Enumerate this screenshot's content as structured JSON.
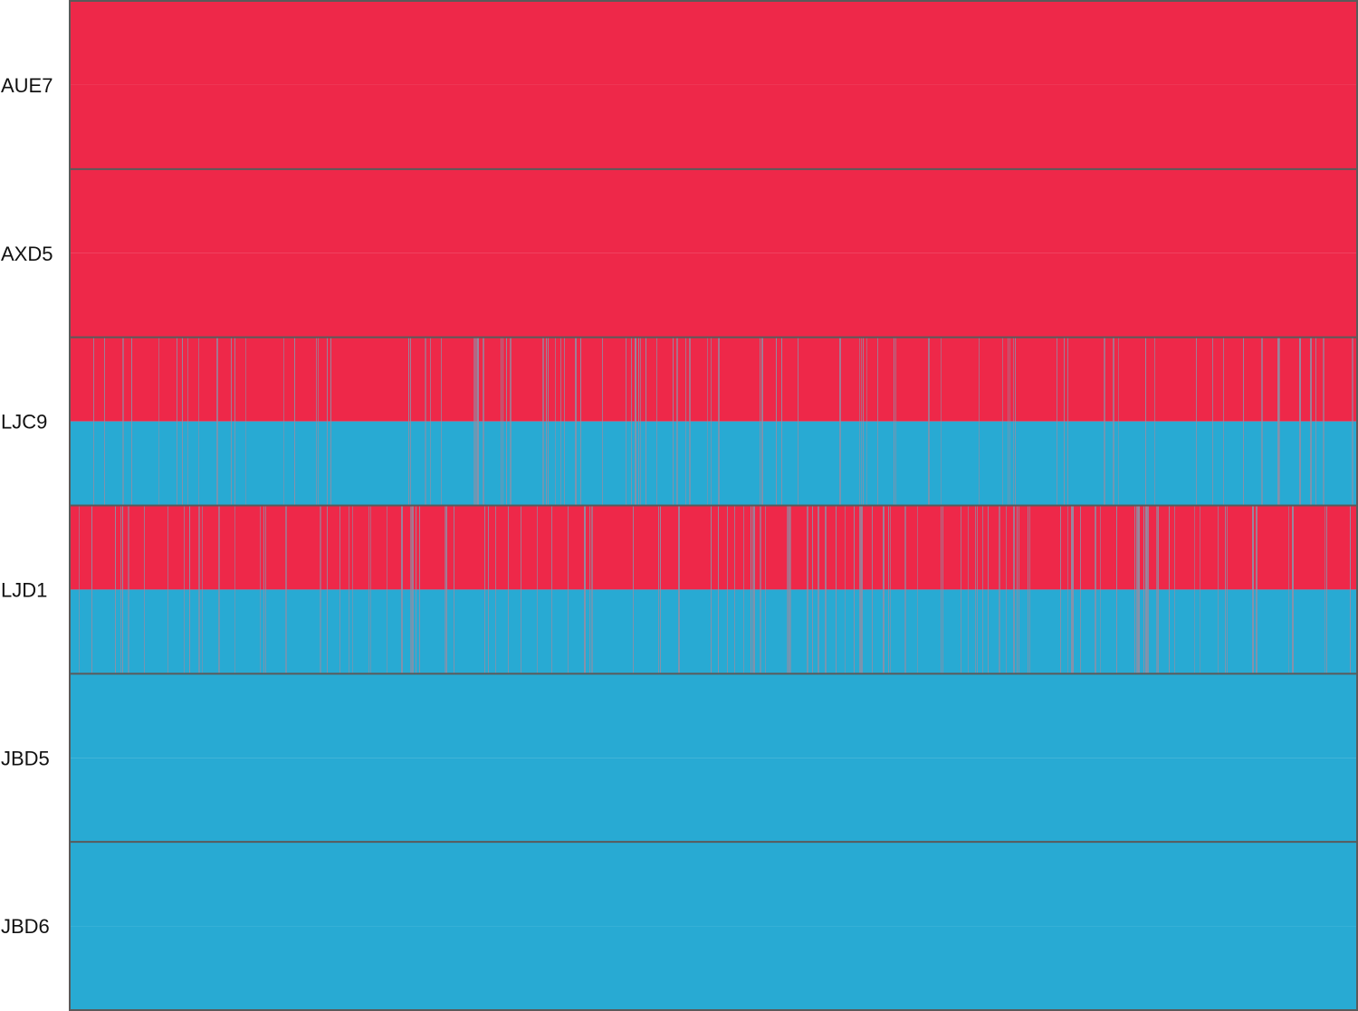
{
  "chart_data": {
    "type": "heatmap",
    "rows": [
      "AUE7",
      "AXD5",
      "LJC9",
      "LJD1",
      "JBD5",
      "JBD6"
    ],
    "sub_rows_per_row": 2,
    "colors": {
      "red": "#EE2849",
      "blue": "#28AAD3",
      "mixed": "#8F8FA6",
      "border": "#5A5A5A"
    },
    "row_patterns": [
      {
        "row": "AUE7",
        "top": "red",
        "bottom": "red",
        "mixed_density": 0
      },
      {
        "row": "AXD5",
        "top": "red",
        "bottom": "red",
        "mixed_density": 0
      },
      {
        "row": "LJC9",
        "top": "red",
        "bottom": "blue",
        "mixed_density": 0.14
      },
      {
        "row": "LJD1",
        "top": "red",
        "bottom": "blue",
        "mixed_density": 0.18
      },
      {
        "row": "JBD5",
        "top": "blue",
        "bottom": "blue",
        "mixed_density": 0
      },
      {
        "row": "JBD6",
        "top": "blue",
        "bottom": "blue",
        "mixed_density": 0
      }
    ]
  }
}
